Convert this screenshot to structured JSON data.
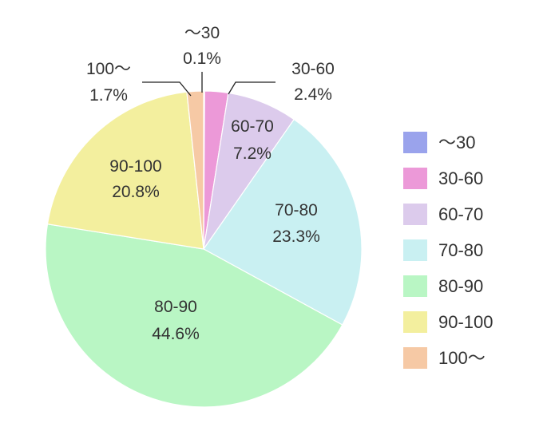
{
  "chart_data": {
    "type": "pie",
    "title": "",
    "legend_position": "right",
    "slices": [
      {
        "label": "～30",
        "value": 0.1,
        "value_label": "0.1%",
        "color": "#9aa3ec"
      },
      {
        "label": "30-60",
        "value": 2.4,
        "value_label": "2.4%",
        "color": "#ec99d8"
      },
      {
        "label": "60-70",
        "value": 7.2,
        "value_label": "7.2%",
        "color": "#dccbec"
      },
      {
        "label": "70-80",
        "value": 23.3,
        "value_label": "23.3%",
        "color": "#c9f0f2"
      },
      {
        "label": "80-90",
        "value": 44.6,
        "value_label": "44.6%",
        "color": "#b9f6c4"
      },
      {
        "label": "90-100",
        "value": 20.8,
        "value_label": "20.8%",
        "color": "#f3ef9e"
      },
      {
        "label": "100～",
        "value": 1.7,
        "value_label": "1.7%",
        "color": "#f6c9a5"
      }
    ]
  }
}
